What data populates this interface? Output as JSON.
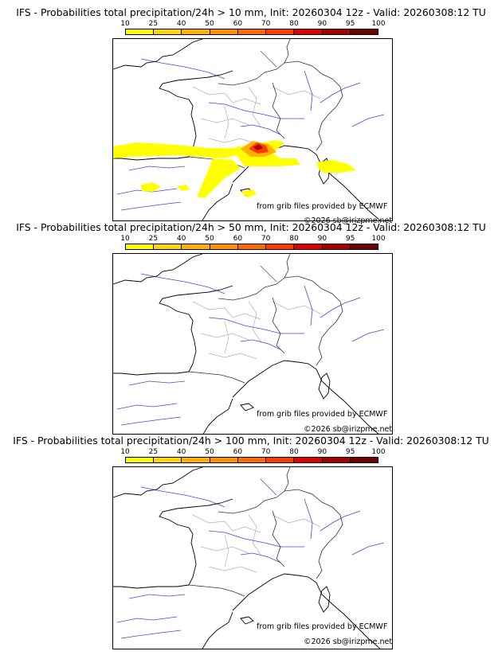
{
  "panels": [
    {
      "title": "IFS - Probabilities total precipitation/24h > 10 mm, Init: 20260304 12z - Valid: 20260308:12 TU"
    },
    {
      "title": "IFS - Probabilities total precipitation/24h > 50 mm, Init: 20260304 12z - Valid: 20260308:12 TU"
    },
    {
      "title": "IFS - Probabilities total precipitation/24h > 100 mm, Init: 20260304 12z - Valid: 20260308:12 TU"
    }
  ],
  "colorbar": {
    "ticks": [
      "10",
      "25",
      "40",
      "50",
      "60",
      "70",
      "80",
      "90",
      "95",
      "100"
    ],
    "colors": [
      "#ffff00",
      "#ffd700",
      "#ffb000",
      "#ff9000",
      "#ff6a00",
      "#ff3a00",
      "#e00000",
      "#a80000",
      "#700000"
    ]
  },
  "credits": {
    "source": "from grib files provided by ECMWF",
    "copyright": "©2026 sb@irizpme.net"
  }
}
